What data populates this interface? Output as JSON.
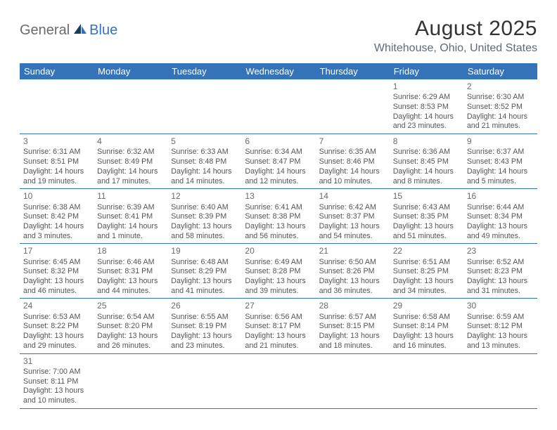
{
  "logo": {
    "general": "General",
    "blue": "Blue"
  },
  "title": "August 2025",
  "location": "Whitehouse, Ohio, United States",
  "colors": {
    "header_bg": "#3573b9",
    "header_text": "#ffffff",
    "body_text": "#555555",
    "border": "#3573b9",
    "title_text": "#333333",
    "location_text": "#5f6b76",
    "logo_gray": "#6b6b6b",
    "logo_blue": "#3573b9"
  },
  "weekdays": [
    "Sunday",
    "Monday",
    "Tuesday",
    "Wednesday",
    "Thursday",
    "Friday",
    "Saturday"
  ],
  "cells": [
    {
      "blank": true
    },
    {
      "blank": true
    },
    {
      "blank": true
    },
    {
      "blank": true
    },
    {
      "blank": true
    },
    {
      "day": "1",
      "sunrise": "Sunrise: 6:29 AM",
      "sunset": "Sunset: 8:53 PM",
      "daylight1": "Daylight: 14 hours",
      "daylight2": "and 23 minutes."
    },
    {
      "day": "2",
      "sunrise": "Sunrise: 6:30 AM",
      "sunset": "Sunset: 8:52 PM",
      "daylight1": "Daylight: 14 hours",
      "daylight2": "and 21 minutes."
    },
    {
      "day": "3",
      "sunrise": "Sunrise: 6:31 AM",
      "sunset": "Sunset: 8:51 PM",
      "daylight1": "Daylight: 14 hours",
      "daylight2": "and 19 minutes."
    },
    {
      "day": "4",
      "sunrise": "Sunrise: 6:32 AM",
      "sunset": "Sunset: 8:49 PM",
      "daylight1": "Daylight: 14 hours",
      "daylight2": "and 17 minutes."
    },
    {
      "day": "5",
      "sunrise": "Sunrise: 6:33 AM",
      "sunset": "Sunset: 8:48 PM",
      "daylight1": "Daylight: 14 hours",
      "daylight2": "and 14 minutes."
    },
    {
      "day": "6",
      "sunrise": "Sunrise: 6:34 AM",
      "sunset": "Sunset: 8:47 PM",
      "daylight1": "Daylight: 14 hours",
      "daylight2": "and 12 minutes."
    },
    {
      "day": "7",
      "sunrise": "Sunrise: 6:35 AM",
      "sunset": "Sunset: 8:46 PM",
      "daylight1": "Daylight: 14 hours",
      "daylight2": "and 10 minutes."
    },
    {
      "day": "8",
      "sunrise": "Sunrise: 6:36 AM",
      "sunset": "Sunset: 8:45 PM",
      "daylight1": "Daylight: 14 hours",
      "daylight2": "and 8 minutes."
    },
    {
      "day": "9",
      "sunrise": "Sunrise: 6:37 AM",
      "sunset": "Sunset: 8:43 PM",
      "daylight1": "Daylight: 14 hours",
      "daylight2": "and 5 minutes."
    },
    {
      "day": "10",
      "sunrise": "Sunrise: 6:38 AM",
      "sunset": "Sunset: 8:42 PM",
      "daylight1": "Daylight: 14 hours",
      "daylight2": "and 3 minutes."
    },
    {
      "day": "11",
      "sunrise": "Sunrise: 6:39 AM",
      "sunset": "Sunset: 8:41 PM",
      "daylight1": "Daylight: 14 hours",
      "daylight2": "and 1 minute."
    },
    {
      "day": "12",
      "sunrise": "Sunrise: 6:40 AM",
      "sunset": "Sunset: 8:39 PM",
      "daylight1": "Daylight: 13 hours",
      "daylight2": "and 58 minutes."
    },
    {
      "day": "13",
      "sunrise": "Sunrise: 6:41 AM",
      "sunset": "Sunset: 8:38 PM",
      "daylight1": "Daylight: 13 hours",
      "daylight2": "and 56 minutes."
    },
    {
      "day": "14",
      "sunrise": "Sunrise: 6:42 AM",
      "sunset": "Sunset: 8:37 PM",
      "daylight1": "Daylight: 13 hours",
      "daylight2": "and 54 minutes."
    },
    {
      "day": "15",
      "sunrise": "Sunrise: 6:43 AM",
      "sunset": "Sunset: 8:35 PM",
      "daylight1": "Daylight: 13 hours",
      "daylight2": "and 51 minutes."
    },
    {
      "day": "16",
      "sunrise": "Sunrise: 6:44 AM",
      "sunset": "Sunset: 8:34 PM",
      "daylight1": "Daylight: 13 hours",
      "daylight2": "and 49 minutes."
    },
    {
      "day": "17",
      "sunrise": "Sunrise: 6:45 AM",
      "sunset": "Sunset: 8:32 PM",
      "daylight1": "Daylight: 13 hours",
      "daylight2": "and 46 minutes."
    },
    {
      "day": "18",
      "sunrise": "Sunrise: 6:46 AM",
      "sunset": "Sunset: 8:31 PM",
      "daylight1": "Daylight: 13 hours",
      "daylight2": "and 44 minutes."
    },
    {
      "day": "19",
      "sunrise": "Sunrise: 6:48 AM",
      "sunset": "Sunset: 8:29 PM",
      "daylight1": "Daylight: 13 hours",
      "daylight2": "and 41 minutes."
    },
    {
      "day": "20",
      "sunrise": "Sunrise: 6:49 AM",
      "sunset": "Sunset: 8:28 PM",
      "daylight1": "Daylight: 13 hours",
      "daylight2": "and 39 minutes."
    },
    {
      "day": "21",
      "sunrise": "Sunrise: 6:50 AM",
      "sunset": "Sunset: 8:26 PM",
      "daylight1": "Daylight: 13 hours",
      "daylight2": "and 36 minutes."
    },
    {
      "day": "22",
      "sunrise": "Sunrise: 6:51 AM",
      "sunset": "Sunset: 8:25 PM",
      "daylight1": "Daylight: 13 hours",
      "daylight2": "and 34 minutes."
    },
    {
      "day": "23",
      "sunrise": "Sunrise: 6:52 AM",
      "sunset": "Sunset: 8:23 PM",
      "daylight1": "Daylight: 13 hours",
      "daylight2": "and 31 minutes."
    },
    {
      "day": "24",
      "sunrise": "Sunrise: 6:53 AM",
      "sunset": "Sunset: 8:22 PM",
      "daylight1": "Daylight: 13 hours",
      "daylight2": "and 29 minutes."
    },
    {
      "day": "25",
      "sunrise": "Sunrise: 6:54 AM",
      "sunset": "Sunset: 8:20 PM",
      "daylight1": "Daylight: 13 hours",
      "daylight2": "and 26 minutes."
    },
    {
      "day": "26",
      "sunrise": "Sunrise: 6:55 AM",
      "sunset": "Sunset: 8:19 PM",
      "daylight1": "Daylight: 13 hours",
      "daylight2": "and 23 minutes."
    },
    {
      "day": "27",
      "sunrise": "Sunrise: 6:56 AM",
      "sunset": "Sunset: 8:17 PM",
      "daylight1": "Daylight: 13 hours",
      "daylight2": "and 21 minutes."
    },
    {
      "day": "28",
      "sunrise": "Sunrise: 6:57 AM",
      "sunset": "Sunset: 8:15 PM",
      "daylight1": "Daylight: 13 hours",
      "daylight2": "and 18 minutes."
    },
    {
      "day": "29",
      "sunrise": "Sunrise: 6:58 AM",
      "sunset": "Sunset: 8:14 PM",
      "daylight1": "Daylight: 13 hours",
      "daylight2": "and 16 minutes."
    },
    {
      "day": "30",
      "sunrise": "Sunrise: 6:59 AM",
      "sunset": "Sunset: 8:12 PM",
      "daylight1": "Daylight: 13 hours",
      "daylight2": "and 13 minutes."
    },
    {
      "day": "31",
      "sunrise": "Sunrise: 7:00 AM",
      "sunset": "Sunset: 8:11 PM",
      "daylight1": "Daylight: 13 hours",
      "daylight2": "and 10 minutes."
    },
    {
      "blank": true
    },
    {
      "blank": true
    },
    {
      "blank": true
    },
    {
      "blank": true
    },
    {
      "blank": true
    },
    {
      "blank": true
    }
  ]
}
